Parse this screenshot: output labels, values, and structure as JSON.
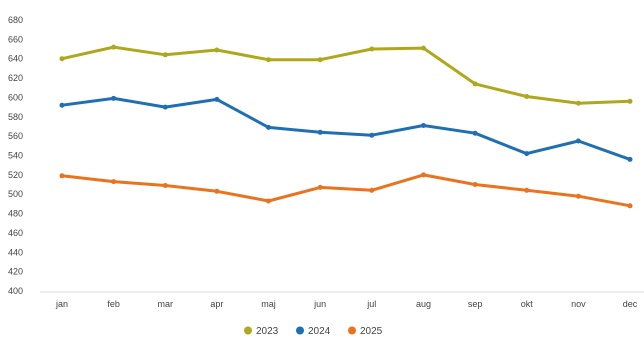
{
  "chart_data": {
    "type": "line",
    "categories": [
      "jan",
      "feb",
      "mar",
      "apr",
      "maj",
      "jun",
      "jul",
      "aug",
      "sep",
      "okt",
      "nov",
      "dec"
    ],
    "ylim": [
      400,
      680
    ],
    "yticks": [
      400,
      420,
      440,
      460,
      480,
      500,
      520,
      540,
      560,
      580,
      600,
      620,
      640,
      660,
      680
    ],
    "grid": false,
    "legend_position": "bottom-center",
    "series": [
      {
        "name": "2023",
        "color": "#B0A81C",
        "values": [
          640,
          652,
          644,
          649,
          639,
          639,
          650,
          651,
          614,
          601,
          594,
          596
        ]
      },
      {
        "name": "2024",
        "color": "#1F6FB5",
        "values": [
          592,
          599,
          590,
          598,
          569,
          564,
          561,
          571,
          563,
          542,
          555,
          536
        ]
      },
      {
        "name": "2025",
        "color": "#E9731F",
        "values": [
          519,
          513,
          509,
          503,
          493,
          507,
          504,
          520,
          510,
          504,
          498,
          488
        ]
      }
    ]
  }
}
